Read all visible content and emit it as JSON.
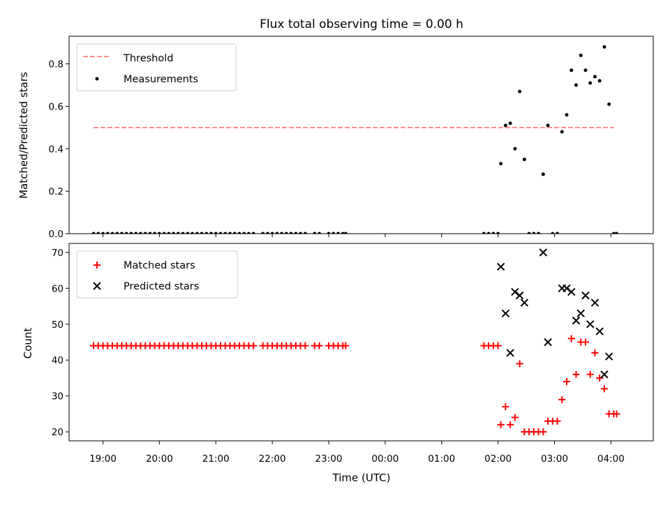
{
  "title": "Flux total observing time = 0.00 h",
  "colors": {
    "threshold": "#ff7f7f",
    "measurement": "#000000",
    "matched": "#ff0000",
    "predicted": "#000000"
  },
  "chart_data": [
    {
      "type": "scatter",
      "name": "ratio-panel",
      "ylabel": "Matched/Predicted stars",
      "xlabel": "",
      "xlim_hours": [
        18.4,
        28.75
      ],
      "ylim": [
        0,
        0.93
      ],
      "yticks": [
        0,
        0.2,
        0.4,
        0.6,
        0.8
      ],
      "ytick_labels": [
        "0.0",
        "0.2",
        "0.4",
        "0.6",
        "0.8"
      ],
      "legend_position": "top-left",
      "legend": [
        "Threshold",
        "Measurements"
      ],
      "threshold": {
        "name": "Threshold",
        "y": 0.5,
        "x_range": [
          "18:50",
          "04:03"
        ],
        "style": "dashed"
      },
      "series": [
        {
          "name": "Measurements",
          "marker": "dot",
          "x": [
            "18:50",
            "18:55",
            "19:00",
            "19:05",
            "19:10",
            "19:15",
            "19:20",
            "19:25",
            "19:30",
            "19:35",
            "19:40",
            "19:45",
            "19:50",
            "19:55",
            "20:00",
            "20:05",
            "20:10",
            "20:15",
            "20:20",
            "20:25",
            "20:30",
            "20:35",
            "20:40",
            "20:45",
            "20:50",
            "20:55",
            "21:00",
            "21:05",
            "21:10",
            "21:15",
            "21:20",
            "21:25",
            "21:30",
            "21:35",
            "21:40",
            "21:50",
            "21:55",
            "22:00",
            "22:05",
            "22:10",
            "22:15",
            "22:20",
            "22:25",
            "22:30",
            "22:35",
            "22:45",
            "22:50",
            "23:00",
            "23:05",
            "23:10",
            "23:15",
            "23:18",
            "01:45",
            "01:50",
            "01:55",
            "02:00",
            "02:03",
            "02:08",
            "02:13",
            "02:18",
            "02:23",
            "02:28",
            "02:33",
            "02:38",
            "02:43",
            "02:48",
            "02:53",
            "02:58",
            "03:03",
            "03:08",
            "03:13",
            "03:18",
            "03:23",
            "03:28",
            "03:33",
            "03:38",
            "03:43",
            "03:48",
            "03:53",
            "03:58",
            "04:03",
            "04:06"
          ],
          "y": [
            0,
            0,
            0,
            0,
            0,
            0,
            0,
            0,
            0,
            0,
            0,
            0,
            0,
            0,
            0,
            0,
            0,
            0,
            0,
            0,
            0,
            0,
            0,
            0,
            0,
            0,
            0,
            0,
            0,
            0,
            0,
            0,
            0,
            0,
            0,
            0,
            0,
            0,
            0,
            0,
            0,
            0,
            0,
            0,
            0,
            0,
            0,
            0,
            0,
            0,
            0,
            0,
            0,
            0,
            0,
            0,
            0.33,
            0.51,
            0.52,
            0.4,
            0.67,
            0.35,
            0,
            0,
            0,
            0.28,
            0.51,
            0,
            0,
            0.48,
            0.56,
            0.77,
            0.7,
            0.84,
            0.77,
            0.71,
            0.74,
            0.72,
            0.88,
            0.61,
            0,
            0
          ]
        }
      ]
    },
    {
      "type": "scatter",
      "name": "count-panel",
      "ylabel": "Count",
      "xlabel": "Time (UTC)",
      "xlim_hours": [
        18.4,
        28.75
      ],
      "ylim": [
        17.5,
        72.5
      ],
      "yticks": [
        20,
        30,
        40,
        50,
        60,
        70
      ],
      "ytick_labels": [
        "20",
        "30",
        "40",
        "50",
        "60",
        "70"
      ],
      "xticks": [
        "19:00",
        "20:00",
        "21:00",
        "22:00",
        "23:00",
        "00:00",
        "01:00",
        "02:00",
        "03:00",
        "04:00"
      ],
      "legend_position": "top-left",
      "legend": [
        "Matched stars",
        "Predicted stars"
      ],
      "series": [
        {
          "name": "Matched stars",
          "marker": "plus",
          "x": [
            "18:50",
            "18:55",
            "19:00",
            "19:05",
            "19:10",
            "19:15",
            "19:20",
            "19:25",
            "19:30",
            "19:35",
            "19:40",
            "19:45",
            "19:50",
            "19:55",
            "20:00",
            "20:05",
            "20:10",
            "20:15",
            "20:20",
            "20:25",
            "20:30",
            "20:35",
            "20:40",
            "20:45",
            "20:50",
            "20:55",
            "21:00",
            "21:05",
            "21:10",
            "21:15",
            "21:20",
            "21:25",
            "21:30",
            "21:35",
            "21:40",
            "21:50",
            "21:55",
            "22:00",
            "22:05",
            "22:10",
            "22:15",
            "22:20",
            "22:25",
            "22:30",
            "22:35",
            "22:45",
            "22:50",
            "23:00",
            "23:05",
            "23:10",
            "23:15",
            "23:18",
            "01:45",
            "01:50",
            "01:55",
            "02:00",
            "02:03",
            "02:08",
            "02:13",
            "02:18",
            "02:23",
            "02:28",
            "02:33",
            "02:38",
            "02:43",
            "02:48",
            "02:53",
            "02:58",
            "03:03",
            "03:08",
            "03:13",
            "03:18",
            "03:23",
            "03:28",
            "03:33",
            "03:38",
            "03:43",
            "03:48",
            "03:53",
            "03:58",
            "04:03",
            "04:06"
          ],
          "y": [
            44,
            44,
            44,
            44,
            44,
            44,
            44,
            44,
            44,
            44,
            44,
            44,
            44,
            44,
            44,
            44,
            44,
            44,
            44,
            44,
            44,
            44,
            44,
            44,
            44,
            44,
            44,
            44,
            44,
            44,
            44,
            44,
            44,
            44,
            44,
            44,
            44,
            44,
            44,
            44,
            44,
            44,
            44,
            44,
            44,
            44,
            44,
            44,
            44,
            44,
            44,
            44,
            44,
            44,
            44,
            44,
            22,
            27,
            22,
            24,
            39,
            20,
            20,
            20,
            20,
            20,
            23,
            23,
            23,
            29,
            34,
            46,
            36,
            45,
            45,
            36,
            42,
            35,
            32,
            25,
            25,
            25
          ]
        },
        {
          "name": "Predicted stars",
          "marker": "x",
          "x": [
            "02:03",
            "02:08",
            "02:13",
            "02:18",
            "02:23",
            "02:28",
            "02:48",
            "02:53",
            "03:08",
            "03:13",
            "03:18",
            "03:23",
            "03:28",
            "03:33",
            "03:38",
            "03:43",
            "03:48",
            "03:53",
            "03:58"
          ],
          "y": [
            66,
            53,
            42,
            59,
            58,
            56,
            70,
            45,
            60,
            60,
            59,
            51,
            53,
            58,
            50,
            56,
            48,
            36,
            41
          ]
        }
      ]
    }
  ]
}
